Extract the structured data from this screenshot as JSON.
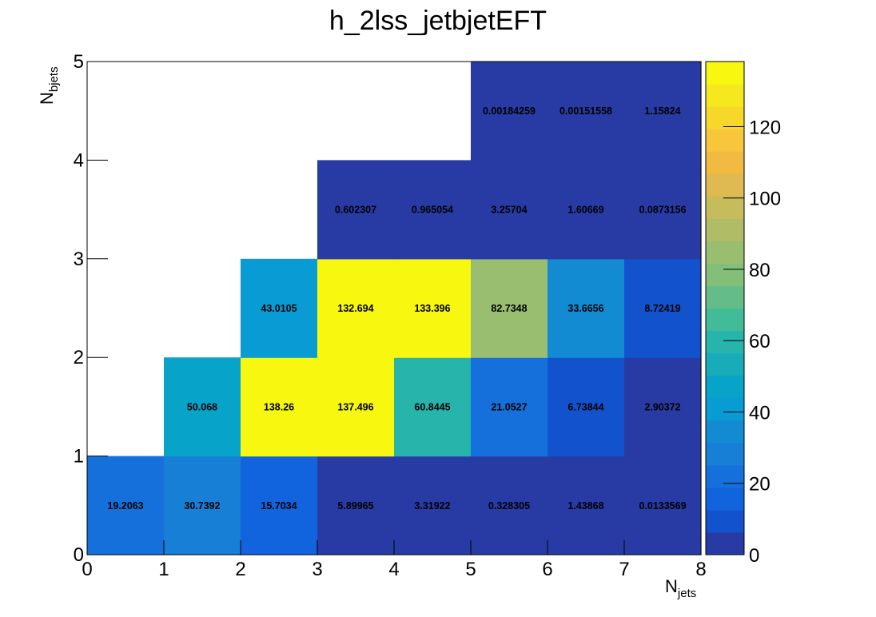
{
  "chart_data": {
    "type": "heatmap",
    "title": "h_2lss_jetbjetEFT",
    "xlabel": "N",
    "xlabel_sub": "jets",
    "ylabel": "N",
    "ylabel_sub": "bjets",
    "xlim": [
      0,
      8
    ],
    "ylim": [
      0,
      5
    ],
    "x_ticks": [
      "0",
      "1",
      "2",
      "3",
      "4",
      "5",
      "6",
      "7",
      "8"
    ],
    "y_ticks": [
      "0",
      "1",
      "2",
      "3",
      "4",
      "5"
    ],
    "zlim": [
      0,
      138.26
    ],
    "colorbar_ticks": [
      "0",
      "20",
      "40",
      "60",
      "80",
      "100",
      "120"
    ],
    "colorbar_values": [
      0,
      20,
      40,
      60,
      80,
      100,
      120
    ],
    "cells": [
      {
        "x": 0,
        "y": 0,
        "value": 19.2063,
        "label": "19.2063"
      },
      {
        "x": 1,
        "y": 0,
        "value": 30.7392,
        "label": "30.7392"
      },
      {
        "x": 2,
        "y": 0,
        "value": 15.7034,
        "label": "15.7034"
      },
      {
        "x": 3,
        "y": 0,
        "value": 5.89965,
        "label": "5.89965"
      },
      {
        "x": 4,
        "y": 0,
        "value": 3.31922,
        "label": "3.31922"
      },
      {
        "x": 5,
        "y": 0,
        "value": 0.328305,
        "label": "0.328305"
      },
      {
        "x": 6,
        "y": 0,
        "value": 1.43868,
        "label": "1.43868"
      },
      {
        "x": 7,
        "y": 0,
        "value": 0.0133569,
        "label": "0.0133569"
      },
      {
        "x": 1,
        "y": 1,
        "value": 50.068,
        "label": "50.068"
      },
      {
        "x": 2,
        "y": 1,
        "value": 138.26,
        "label": "138.26"
      },
      {
        "x": 3,
        "y": 1,
        "value": 137.496,
        "label": "137.496"
      },
      {
        "x": 4,
        "y": 1,
        "value": 60.8445,
        "label": "60.8445"
      },
      {
        "x": 5,
        "y": 1,
        "value": 21.0527,
        "label": "21.0527"
      },
      {
        "x": 6,
        "y": 1,
        "value": 6.73844,
        "label": "6.73844"
      },
      {
        "x": 7,
        "y": 1,
        "value": 2.90372,
        "label": "2.90372"
      },
      {
        "x": 2,
        "y": 2,
        "value": 43.0105,
        "label": "43.0105"
      },
      {
        "x": 3,
        "y": 2,
        "value": 132.694,
        "label": "132.694"
      },
      {
        "x": 4,
        "y": 2,
        "value": 133.396,
        "label": "133.396"
      },
      {
        "x": 5,
        "y": 2,
        "value": 82.7348,
        "label": "82.7348"
      },
      {
        "x": 6,
        "y": 2,
        "value": 33.6656,
        "label": "33.6656"
      },
      {
        "x": 7,
        "y": 2,
        "value": 8.72419,
        "label": "8.72419"
      },
      {
        "x": 3,
        "y": 3,
        "value": 0.602307,
        "label": "0.602307"
      },
      {
        "x": 4,
        "y": 3,
        "value": 0.965054,
        "label": "0.965054"
      },
      {
        "x": 5,
        "y": 3,
        "value": 3.25704,
        "label": "3.25704"
      },
      {
        "x": 6,
        "y": 3,
        "value": 1.60669,
        "label": "1.60669"
      },
      {
        "x": 7,
        "y": 3,
        "value": 0.0873156,
        "label": "0.0873156"
      },
      {
        "x": 5,
        "y": 4,
        "value": 0.00184259,
        "label": "0.00184259"
      },
      {
        "x": 6,
        "y": 4,
        "value": 0.00151558,
        "label": "0.00151558"
      },
      {
        "x": 7,
        "y": 4,
        "value": 1.15824,
        "label": "1.15824"
      }
    ],
    "palette": [
      "#283ba4",
      "#1253cd",
      "#1163de",
      "#1670dc",
      "#1780d6",
      "#128bd3",
      "#099bd3",
      "#08a3c8",
      "#18acb8",
      "#26b4ab",
      "#42bb98",
      "#64bd89",
      "#84bf7a",
      "#9abe6f",
      "#b1bc66",
      "#c6bc5c",
      "#dfb951",
      "#f0bb40",
      "#f7c63b",
      "#f6d82a",
      "#f6e81e",
      "#f8f70f"
    ]
  }
}
